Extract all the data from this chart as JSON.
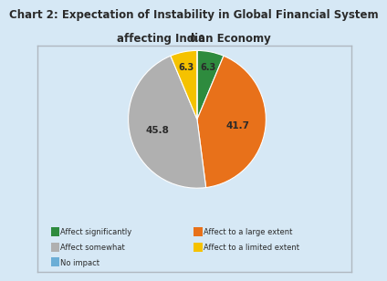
{
  "title_line1": "Chart 2: Expectation of Instability in Global Financial System",
  "title_line2": "affecting Indian Economy",
  "title_fontsize": 8.5,
  "slices": [
    6.3,
    41.7,
    45.8,
    6.3,
    0.0
  ],
  "labels": [
    "Affect significantly",
    "Affect to a large extent",
    "Affect somewhat",
    "Affect to a limited extent",
    "No impact"
  ],
  "colors": [
    "#2e8b3e",
    "#e8711a",
    "#b0b0b0",
    "#f5c200",
    "#6baed6"
  ],
  "label_values": [
    "6.3",
    "41.7",
    "45.8",
    "6.3",
    "0.0"
  ],
  "background_color": "#d6e8f5",
  "chart_bg_color": "#d6e8f5",
  "startangle": 90,
  "legend_fontsize": 6.0,
  "border_color": "#b0b8c0"
}
